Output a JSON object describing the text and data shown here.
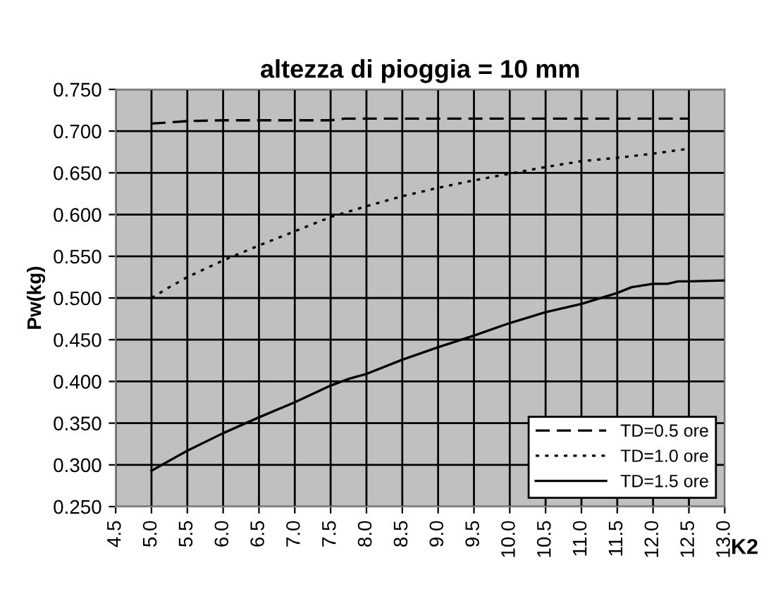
{
  "chart_data": {
    "type": "line",
    "title": "altezza di pioggia = 10 mm",
    "xlabel": "K2",
    "ylabel": "Pw(kg)",
    "xlim": [
      4.5,
      13.0
    ],
    "xticks": [
      {
        "value": 4.5,
        "label": "4.5"
      },
      {
        "value": 5.0,
        "label": "5.0"
      },
      {
        "value": 5.5,
        "label": "5.5"
      },
      {
        "value": 6.0,
        "label": "6.0"
      },
      {
        "value": 6.5,
        "label": "6.5"
      },
      {
        "value": 7.0,
        "label": "7.0"
      },
      {
        "value": 7.5,
        "label": "7.5"
      },
      {
        "value": 8.0,
        "label": "8.0"
      },
      {
        "value": 8.5,
        "label": "8.5"
      },
      {
        "value": 9.0,
        "label": "9.0"
      },
      {
        "value": 9.5,
        "label": "9.5"
      },
      {
        "value": 10.0,
        "label": "10.0"
      },
      {
        "value": 10.5,
        "label": "10.5"
      },
      {
        "value": 11.0,
        "label": "11.0"
      },
      {
        "value": 11.5,
        "label": "11.5"
      },
      {
        "value": 12.0,
        "label": "12.0"
      },
      {
        "value": 12.5,
        "label": "12.5"
      },
      {
        "value": 13.0,
        "label": "13.0"
      }
    ],
    "ylim": [
      0.25,
      0.75
    ],
    "yticks": [
      {
        "value": 0.25,
        "label": "0.250"
      },
      {
        "value": 0.3,
        "label": "0.300"
      },
      {
        "value": 0.35,
        "label": "0.350"
      },
      {
        "value": 0.4,
        "label": "0.400"
      },
      {
        "value": 0.45,
        "label": "0.450"
      },
      {
        "value": 0.5,
        "label": "0.500"
      },
      {
        "value": 0.55,
        "label": "0.550"
      },
      {
        "value": 0.6,
        "label": "0.600"
      },
      {
        "value": 0.65,
        "label": "0.650"
      },
      {
        "value": 0.7,
        "label": "0.700"
      },
      {
        "value": 0.75,
        "label": "0.750"
      }
    ],
    "grid": true,
    "legend": "bottom right",
    "marker": "none",
    "series": [
      {
        "name": "TD=0.5 ore",
        "color": "#000000",
        "line_style": "dashed",
        "x": [
          5.0,
          5.5,
          6.0,
          6.5,
          7.0,
          7.5,
          7.7,
          8.0,
          9.0,
          10.0,
          11.0,
          12.0,
          12.5
        ],
        "values": [
          0.709,
          0.712,
          0.713,
          0.713,
          0.713,
          0.713,
          0.715,
          0.715,
          0.715,
          0.715,
          0.715,
          0.715,
          0.715
        ]
      },
      {
        "name": "TD=1.0 ore",
        "color": "#000000",
        "line_style": "dotted",
        "x": [
          5.0,
          5.25,
          5.5,
          6.0,
          6.5,
          7.0,
          7.5,
          8.0,
          8.5,
          9.0,
          9.5,
          10.0,
          10.5,
          11.0,
          11.5,
          12.0,
          12.5
        ],
        "values": [
          0.5,
          0.513,
          0.525,
          0.545,
          0.563,
          0.58,
          0.597,
          0.61,
          0.622,
          0.632,
          0.641,
          0.649,
          0.657,
          0.664,
          0.668,
          0.673,
          0.679
        ]
      },
      {
        "name": "TD=1.5 ore",
        "color": "#000000",
        "line_style": "solid",
        "x": [
          5.0,
          5.5,
          6.0,
          6.5,
          7.0,
          7.5,
          7.75,
          8.0,
          8.5,
          9.0,
          9.5,
          10.0,
          10.5,
          11.0,
          11.5,
          11.7,
          12.0,
          12.2,
          12.35,
          12.5,
          13.0
        ],
        "values": [
          0.293,
          0.317,
          0.338,
          0.357,
          0.375,
          0.395,
          0.403,
          0.409,
          0.426,
          0.441,
          0.455,
          0.47,
          0.483,
          0.493,
          0.506,
          0.513,
          0.517,
          0.517,
          0.52,
          0.52,
          0.521
        ]
      }
    ]
  }
}
